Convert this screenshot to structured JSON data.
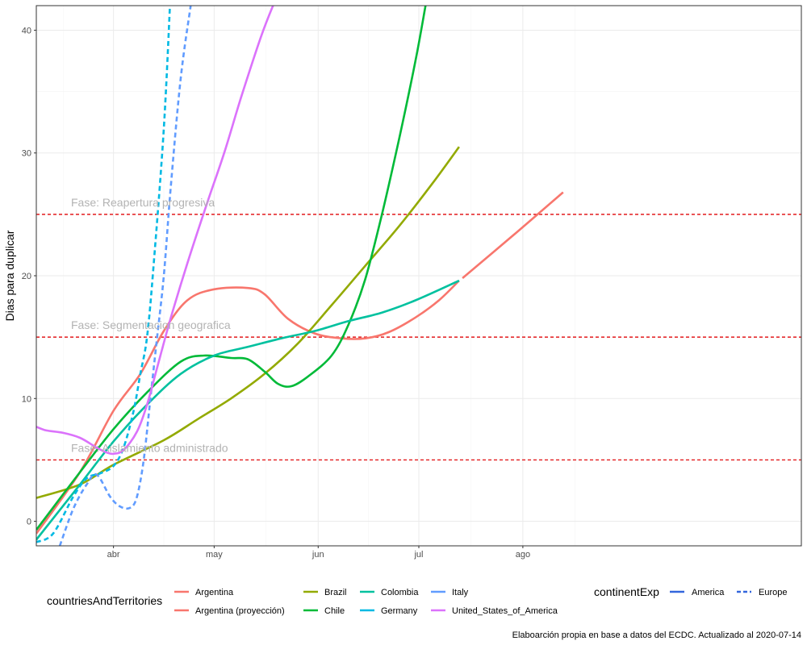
{
  "chart_data": {
    "type": "line",
    "ylabel": "Dias para duplicar",
    "xlabel": "",
    "caption": "Elaboarción propia en base a datos del ECDC. Actualizado al  2020-07-14",
    "xlim": [
      -23,
      205
    ],
    "ylim": [
      -2,
      42
    ],
    "x_ticks": [
      {
        "label": "abr",
        "value": 0
      },
      {
        "label": "may",
        "value": 30
      },
      {
        "label": "jun",
        "value": 61
      },
      {
        "label": "jul",
        "value": 91
      },
      {
        "label": "ago",
        "value": 122
      }
    ],
    "y_ticks": [
      0,
      10,
      20,
      30,
      40
    ],
    "reference_lines": [
      {
        "y": 25,
        "label": "Fase: Reapertura progresiva"
      },
      {
        "y": 15,
        "label": "Fase: Segmentacion geografica"
      },
      {
        "y": 5,
        "label": "Fase: Aislamiento administrado"
      }
    ],
    "series": [
      {
        "name": "Argentina",
        "color": "#F8766D",
        "dash": "solid",
        "points": [
          [
            -23,
            -1
          ],
          [
            -10,
            4
          ],
          [
            0,
            9
          ],
          [
            8,
            12
          ],
          [
            15,
            15.5
          ],
          [
            22,
            18
          ],
          [
            30,
            18.9
          ],
          [
            40,
            19
          ],
          [
            45,
            18.5
          ],
          [
            52,
            16.5
          ],
          [
            60,
            15.3
          ],
          [
            68,
            14.9
          ],
          [
            75,
            14.9
          ],
          [
            82,
            15.4
          ],
          [
            90,
            16.6
          ],
          [
            97,
            18
          ],
          [
            103,
            19.6
          ]
        ]
      },
      {
        "name": "Argentina (proyección)",
        "color": "#F8766D",
        "dash": "solid",
        "points": [
          [
            104,
            19.8
          ],
          [
            120,
            23.5
          ],
          [
            134,
            26.8
          ]
        ]
      },
      {
        "name": "Brazil",
        "color": "#93AA00",
        "dash": "solid",
        "points": [
          [
            -23,
            1.9
          ],
          [
            -10,
            3
          ],
          [
            0,
            4.6
          ],
          [
            15,
            6.6
          ],
          [
            25,
            8.3
          ],
          [
            35,
            10
          ],
          [
            45,
            12
          ],
          [
            55,
            14.5
          ],
          [
            65,
            17.6
          ],
          [
            75,
            20.8
          ],
          [
            85,
            24
          ],
          [
            95,
            27.5
          ],
          [
            103,
            30.5
          ]
        ]
      },
      {
        "name": "Chile",
        "color": "#00BA38",
        "dash": "solid",
        "points": [
          [
            -23,
            -0.7
          ],
          [
            -10,
            4
          ],
          [
            0,
            7.5
          ],
          [
            10,
            10.5
          ],
          [
            20,
            13
          ],
          [
            27,
            13.5
          ],
          [
            35,
            13.3
          ],
          [
            40,
            13.2
          ],
          [
            45,
            12.2
          ],
          [
            49,
            11.2
          ],
          [
            53,
            11
          ],
          [
            58,
            11.8
          ],
          [
            65,
            13.5
          ],
          [
            70,
            16
          ],
          [
            75,
            19.7
          ],
          [
            80,
            25
          ],
          [
            85,
            31
          ],
          [
            90,
            37.5
          ],
          [
            93,
            42
          ]
        ]
      },
      {
        "name": "Colombia",
        "color": "#00C19F",
        "dash": "solid",
        "points": [
          [
            -23,
            -1.5
          ],
          [
            -10,
            3
          ],
          [
            0,
            6.5
          ],
          [
            10,
            9.5
          ],
          [
            20,
            12
          ],
          [
            30,
            13.5
          ],
          [
            40,
            14.2
          ],
          [
            50,
            14.9
          ],
          [
            60,
            15.5
          ],
          [
            70,
            16.3
          ],
          [
            80,
            17
          ],
          [
            90,
            18
          ],
          [
            103,
            19.6
          ]
        ]
      },
      {
        "name": "Germany",
        "color": "#00B9E3",
        "dash": "dashed",
        "points": [
          [
            -23,
            -1.7
          ],
          [
            -18,
            -1
          ],
          [
            -12,
            2
          ],
          [
            -8,
            3.5
          ],
          [
            -4,
            3.9
          ],
          [
            0,
            4.5
          ],
          [
            3,
            6
          ],
          [
            6,
            9
          ],
          [
            8,
            12
          ],
          [
            10,
            15
          ],
          [
            12,
            21
          ],
          [
            15,
            32
          ],
          [
            17,
            43
          ]
        ]
      },
      {
        "name": "Italy",
        "color": "#619CFF",
        "dash": "dashed",
        "points": [
          [
            -16,
            -2
          ],
          [
            -12,
            1
          ],
          [
            -8,
            3
          ],
          [
            -5,
            3.8
          ],
          [
            -1,
            2
          ],
          [
            2,
            1.2
          ],
          [
            5,
            1.1
          ],
          [
            7,
            2
          ],
          [
            9,
            5
          ],
          [
            11,
            10
          ],
          [
            13,
            15
          ],
          [
            15,
            20
          ],
          [
            17,
            27
          ],
          [
            20,
            36
          ],
          [
            23,
            42
          ]
        ]
      },
      {
        "name": "United_States_of_America",
        "color": "#DB72FB",
        "dash": "solid",
        "points": [
          [
            -23,
            7.7
          ],
          [
            -20,
            7.4
          ],
          [
            -15,
            7.2
          ],
          [
            -10,
            6.8
          ],
          [
            -5,
            6
          ],
          [
            -2,
            5.6
          ],
          [
            0,
            5.5
          ],
          [
            3,
            5.8
          ],
          [
            7,
            7.3
          ],
          [
            10,
            9.5
          ],
          [
            13,
            12.5
          ],
          [
            17,
            16.5
          ],
          [
            22,
            21
          ],
          [
            28,
            26
          ],
          [
            33,
            30
          ],
          [
            38,
            34.5
          ],
          [
            44,
            39.5
          ],
          [
            48,
            42.3
          ]
        ]
      }
    ]
  },
  "legend": {
    "countries_title": "countriesAndTerritories",
    "countries_items": [
      {
        "label": "Argentina",
        "color": "#F8766D"
      },
      {
        "label": "Argentina (proyección)",
        "color": "#F8766D"
      },
      {
        "label": "Brazil",
        "color": "#93AA00"
      },
      {
        "label": "Chile",
        "color": "#00BA38"
      },
      {
        "label": "Colombia",
        "color": "#00C19F"
      },
      {
        "label": "Germany",
        "color": "#00B9E3"
      },
      {
        "label": "Italy",
        "color": "#619CFF"
      },
      {
        "label": "United_States_of_America",
        "color": "#DB72FB"
      }
    ],
    "continent_title": "continentExp",
    "continent_items": [
      {
        "label": "America",
        "dash": "solid"
      },
      {
        "label": "Europe",
        "dash": "dashed"
      }
    ]
  },
  "colors": {
    "grid": "#ebebeb",
    "reference_line": "#e31a1c",
    "panel_border": "#333333",
    "legend_key_line": "#3366dd"
  }
}
